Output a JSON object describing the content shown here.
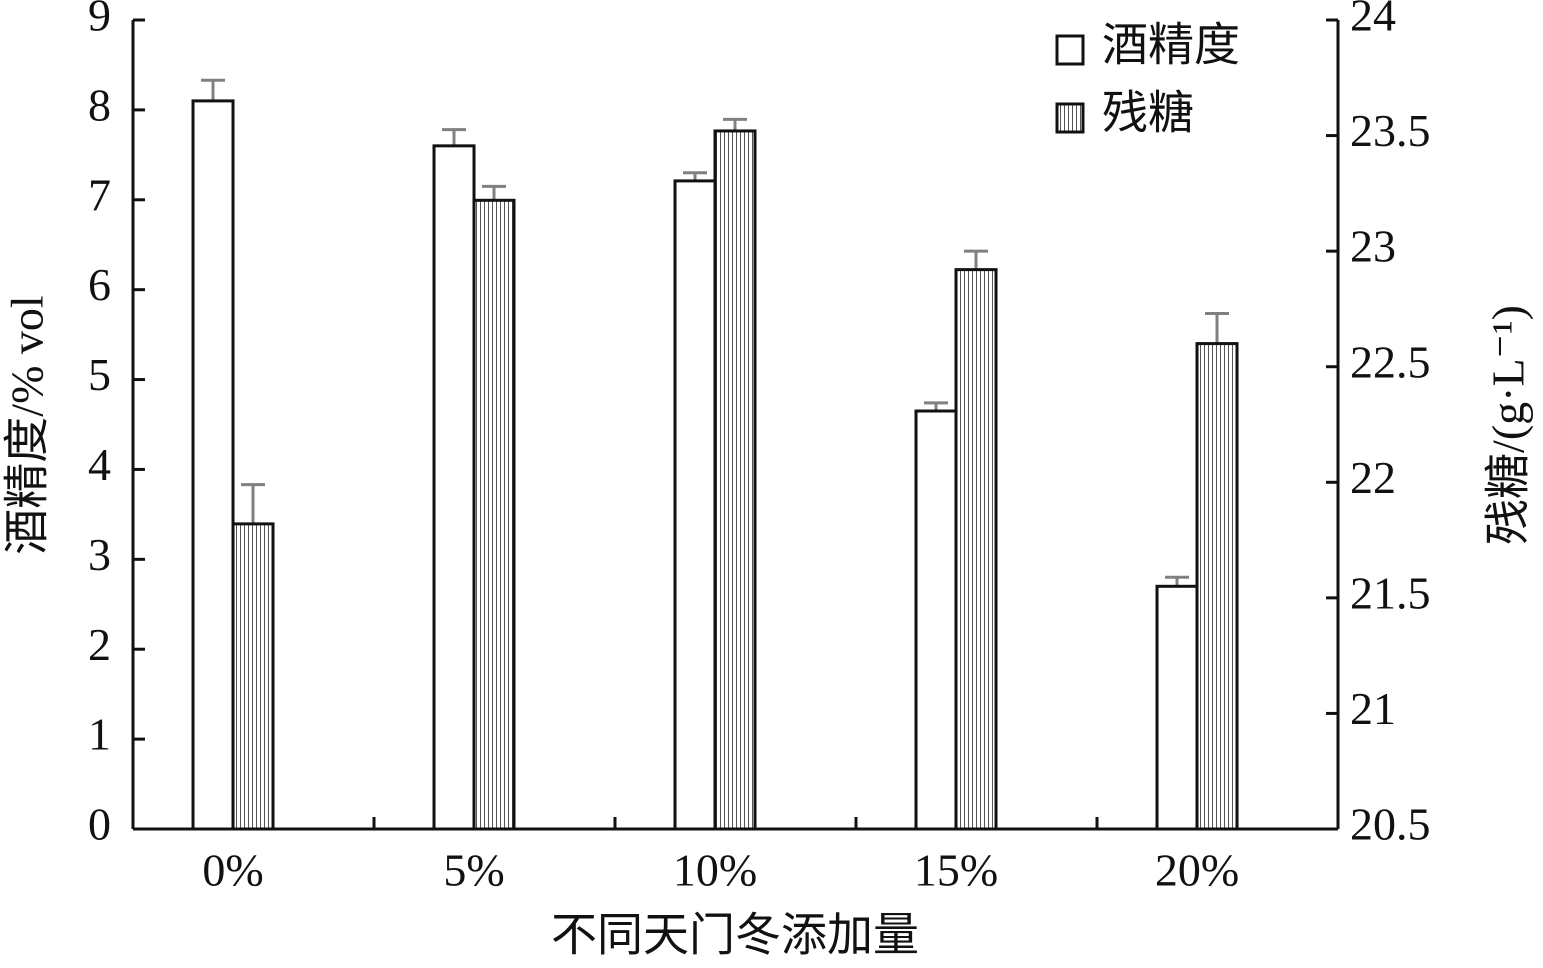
{
  "chart_data": {
    "type": "bar",
    "categories": [
      "0%",
      "5%",
      "10%",
      "15%",
      "20%"
    ],
    "x_label": "不同天门冬添加量",
    "y_label": "酒精度/% vol",
    "y2_label": "残糖/(g·L⁻¹)",
    "series": [
      {
        "name": "酒精度",
        "color": "#ffffff",
        "values": [
          8.1,
          7.6,
          7.21,
          4.65,
          2.7
        ],
        "errors": [
          0.23,
          0.18,
          0.09,
          0.09,
          0.1
        ]
      },
      {
        "name": "残糖",
        "color": "#9a9a9a",
        "hatched": true,
        "axis": "y2",
        "values": [
          21.82,
          23.22,
          23.52,
          22.92,
          22.6
        ],
        "errors": [
          0.17,
          0.06,
          0.05,
          0.08,
          0.13
        ]
      }
    ],
    "ylim": [
      0,
      9
    ],
    "yticks": [
      0,
      1,
      2,
      3,
      4,
      5,
      6,
      7,
      8,
      9
    ],
    "y2lim": [
      20.5,
      24
    ],
    "y2ticks": [
      20.5,
      21,
      21.5,
      22,
      22.5,
      23,
      23.5,
      24
    ],
    "error_color": "#808080",
    "legend": "top-right",
    "grid": false
  }
}
